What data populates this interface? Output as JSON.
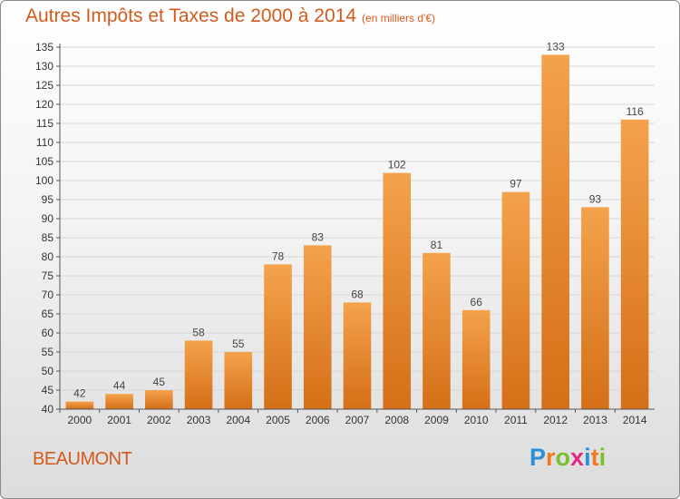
{
  "header": {
    "title": "Autres Impôts et Taxes de 2000 à 2014",
    "unit": "(en milliers d'€)"
  },
  "footer": {
    "town": "BEAUMONT",
    "logo_letters": [
      "P",
      "r",
      "o",
      "x",
      "i",
      "t",
      "i"
    ],
    "logo_colors": [
      "#2a8fd6",
      "#f07b1e",
      "#7bbf2a",
      "#e02a84",
      "#2a8fd6",
      "#f07b1e",
      "#7bbf2a"
    ]
  },
  "chart_data": {
    "type": "bar",
    "title": "Autres Impôts et Taxes de 2000 à 2014",
    "xlabel": "",
    "ylabel": "",
    "ylim": [
      40,
      135
    ],
    "yticks": [
      40,
      45,
      50,
      55,
      60,
      65,
      70,
      75,
      80,
      85,
      90,
      95,
      100,
      105,
      110,
      115,
      120,
      125,
      130,
      135
    ],
    "grid": true,
    "bar_color": "#f4a24c",
    "bar_color_dark": "#d46f17",
    "categories": [
      "2000",
      "2001",
      "2002",
      "2003",
      "2004",
      "2005",
      "2006",
      "2007",
      "2008",
      "2009",
      "2010",
      "2011",
      "2012",
      "2013",
      "2014"
    ],
    "values": [
      42,
      44,
      45,
      58,
      55,
      78,
      83,
      68,
      102,
      81,
      66,
      97,
      133,
      93,
      116
    ]
  }
}
